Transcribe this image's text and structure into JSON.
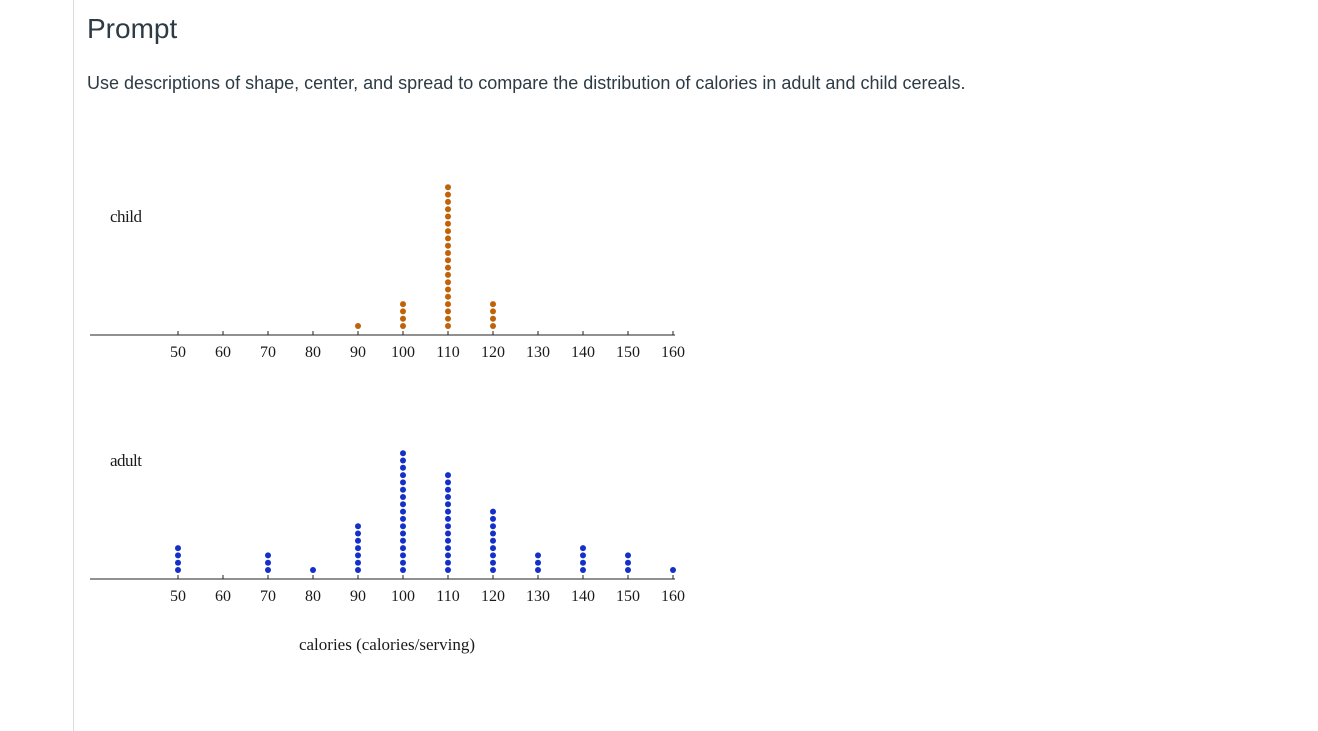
{
  "prompt": {
    "title": "Prompt",
    "text": "Use descriptions of shape, center, and spread to compare the distribution of calories in adult and child cereals."
  },
  "chart_data": {
    "type": "scatter",
    "subtype": "dot-plot",
    "xlabel": "calories (calories/serving)",
    "xlim": [
      50,
      160
    ],
    "ticks": [
      50,
      60,
      70,
      80,
      90,
      100,
      110,
      120,
      130,
      140,
      150,
      160
    ],
    "tick_labels": [
      "50",
      "60",
      "70",
      "80",
      "90",
      "100",
      "110",
      "120",
      "130",
      "140",
      "150",
      "160"
    ],
    "series": [
      {
        "name": "child",
        "color": "#c0620a",
        "x": [
          90,
          100,
          110,
          120
        ],
        "counts": [
          1,
          4,
          20,
          4
        ]
      },
      {
        "name": "adult",
        "color": "#1530c8",
        "x": [
          50,
          70,
          80,
          90,
          100,
          110,
          120,
          130,
          140,
          150,
          160
        ],
        "counts": [
          4,
          3,
          1,
          7,
          17,
          14,
          9,
          3,
          4,
          3,
          1
        ]
      }
    ],
    "grid": false,
    "legend": "none"
  }
}
